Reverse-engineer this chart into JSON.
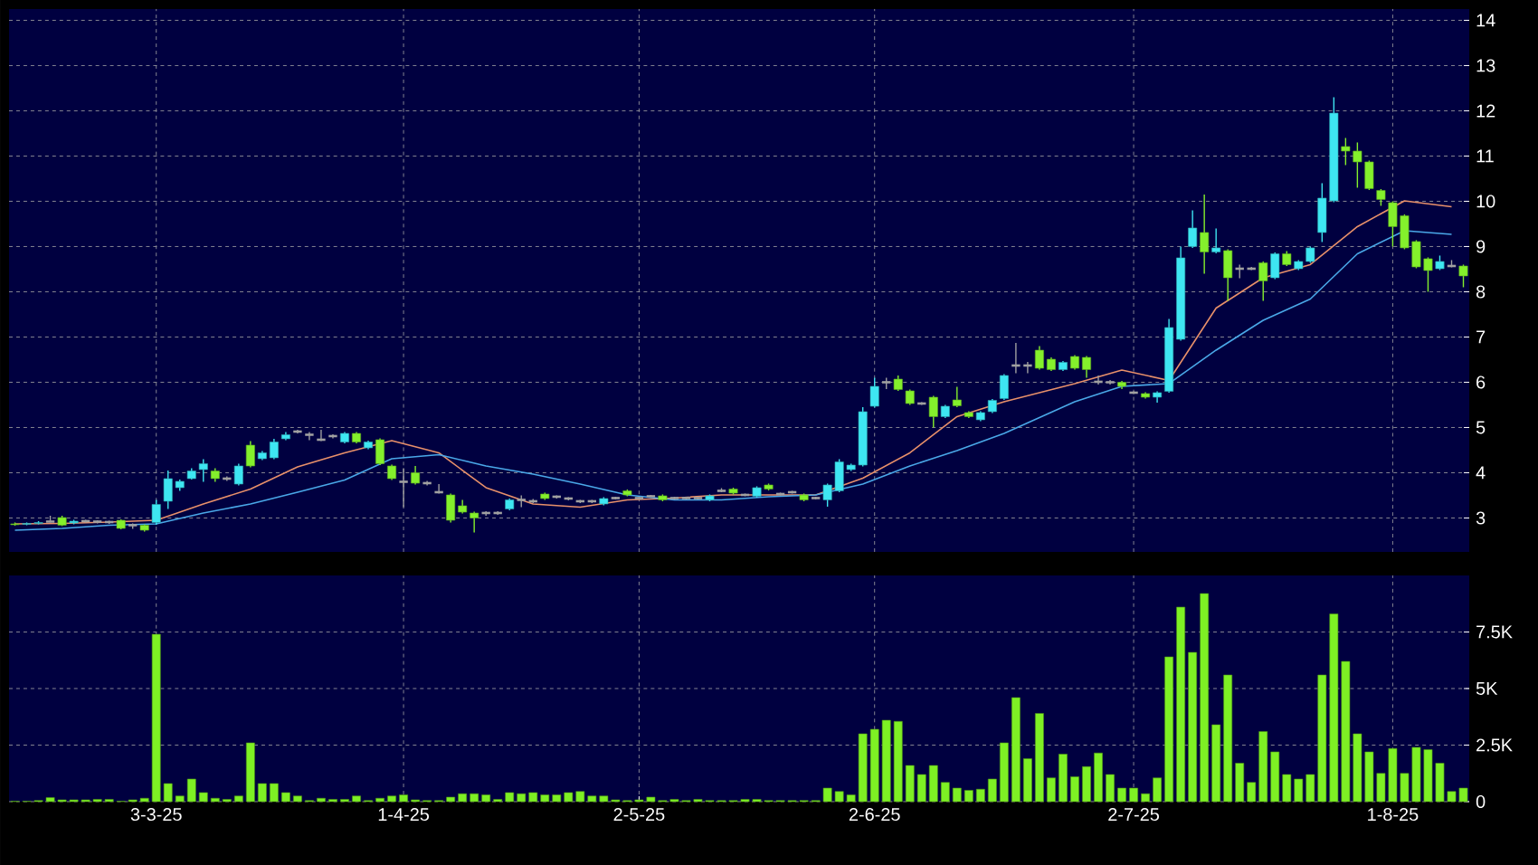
{
  "chart_data": [
    {
      "type": "candlestick",
      "categories": [
        null,
        null,
        null,
        null,
        null,
        null,
        null,
        null,
        null,
        null,
        null,
        null,
        null,
        null,
        null,
        null,
        null,
        null,
        null,
        null,
        null,
        null,
        null,
        null,
        null,
        null,
        null,
        null,
        null,
        null,
        null,
        null,
        null,
        null,
        null,
        null,
        null,
        null,
        null,
        null,
        null,
        null,
        null,
        null,
        null,
        null,
        null,
        null,
        null,
        null,
        null,
        null,
        null,
        null,
        null,
        null,
        null,
        null,
        null,
        null,
        null,
        null,
        null,
        null,
        null,
        null,
        null,
        null,
        null,
        null,
        null,
        null,
        null,
        null,
        null,
        null,
        null,
        null,
        null,
        null,
        null,
        null,
        null,
        null,
        null,
        null,
        null,
        null,
        null,
        null,
        null,
        null,
        null,
        null,
        null,
        null,
        null,
        null,
        null,
        null,
        null,
        null,
        null,
        null,
        null,
        null,
        null,
        null,
        null,
        null,
        null,
        null,
        null,
        null,
        null,
        null,
        null,
        null,
        null,
        null,
        null,
        null,
        null,
        null
      ],
      "ohlc": [
        [
          2.87,
          2.9,
          2.83,
          2.85
        ],
        [
          2.86,
          2.9,
          2.84,
          2.88
        ],
        [
          2.88,
          2.93,
          2.86,
          2.9
        ],
        [
          2.92,
          3.05,
          2.9,
          2.92
        ],
        [
          3.01,
          3.05,
          2.82,
          2.84
        ],
        [
          2.89,
          2.96,
          2.86,
          2.93
        ],
        [
          2.93,
          2.96,
          2.9,
          2.93
        ],
        [
          2.92,
          2.95,
          2.88,
          2.92
        ],
        [
          2.91,
          2.94,
          2.87,
          2.91
        ],
        [
          2.95,
          2.97,
          2.75,
          2.77
        ],
        [
          2.84,
          2.88,
          2.76,
          2.84
        ],
        [
          2.84,
          2.86,
          2.7,
          2.73
        ],
        [
          2.9,
          3.4,
          2.85,
          3.3
        ],
        [
          3.37,
          4.05,
          3.2,
          3.87
        ],
        [
          3.67,
          3.85,
          3.6,
          3.81
        ],
        [
          3.87,
          4.1,
          3.85,
          4.04
        ],
        [
          4.07,
          4.3,
          3.8,
          4.2
        ],
        [
          4.04,
          4.1,
          3.8,
          3.87
        ],
        [
          3.87,
          3.92,
          3.82,
          3.87
        ],
        [
          3.75,
          4.2,
          3.72,
          4.15
        ],
        [
          4.61,
          4.7,
          4.12,
          4.15
        ],
        [
          4.31,
          4.48,
          4.28,
          4.44
        ],
        [
          4.33,
          4.75,
          4.3,
          4.68
        ],
        [
          4.75,
          4.9,
          4.72,
          4.84
        ],
        [
          4.91,
          4.95,
          4.87,
          4.91
        ],
        [
          4.84,
          4.9,
          4.72,
          4.84
        ],
        [
          4.73,
          4.95,
          4.7,
          4.73
        ],
        [
          4.81,
          4.85,
          4.76,
          4.81
        ],
        [
          4.68,
          4.9,
          4.65,
          4.87
        ],
        [
          4.87,
          4.9,
          4.65,
          4.68
        ],
        [
          4.55,
          4.71,
          4.52,
          4.68
        ],
        [
          4.73,
          4.76,
          4.17,
          4.2
        ],
        [
          4.15,
          4.18,
          3.84,
          3.87
        ],
        [
          3.8,
          4.1,
          3.24,
          3.8
        ],
        [
          4.0,
          4.15,
          3.74,
          3.77
        ],
        [
          3.77,
          3.82,
          3.72,
          3.77
        ],
        [
          3.57,
          3.75,
          3.54,
          3.57
        ],
        [
          3.51,
          3.54,
          2.9,
          2.95
        ],
        [
          3.27,
          3.4,
          3.1,
          3.13
        ],
        [
          3.11,
          3.14,
          2.68,
          3.0
        ],
        [
          3.11,
          3.15,
          3.05,
          3.11
        ],
        [
          3.11,
          3.15,
          3.07,
          3.11
        ],
        [
          3.2,
          3.43,
          3.17,
          3.4
        ],
        [
          3.4,
          3.5,
          3.24,
          3.4
        ],
        [
          3.37,
          3.42,
          3.33,
          3.37
        ],
        [
          3.53,
          3.56,
          3.4,
          3.43
        ],
        [
          3.47,
          3.5,
          3.43,
          3.47
        ],
        [
          3.43,
          3.46,
          3.39,
          3.43
        ],
        [
          3.37,
          3.4,
          3.33,
          3.37
        ],
        [
          3.37,
          3.4,
          3.33,
          3.37
        ],
        [
          3.31,
          3.46,
          3.28,
          3.43
        ],
        [
          3.44,
          3.47,
          3.41,
          3.44
        ],
        [
          3.6,
          3.63,
          3.48,
          3.51
        ],
        [
          3.44,
          3.47,
          3.41,
          3.44
        ],
        [
          3.48,
          3.51,
          3.45,
          3.48
        ],
        [
          3.49,
          3.52,
          3.37,
          3.4
        ],
        [
          3.44,
          3.47,
          3.41,
          3.44
        ],
        [
          3.44,
          3.47,
          3.41,
          3.44
        ],
        [
          3.44,
          3.47,
          3.41,
          3.44
        ],
        [
          3.4,
          3.52,
          3.37,
          3.49
        ],
        [
          3.6,
          3.66,
          3.57,
          3.6
        ],
        [
          3.64,
          3.67,
          3.52,
          3.55
        ],
        [
          3.51,
          3.54,
          3.48,
          3.51
        ],
        [
          3.48,
          3.7,
          3.45,
          3.67
        ],
        [
          3.73,
          3.76,
          3.61,
          3.64
        ],
        [
          3.53,
          3.56,
          3.5,
          3.53
        ],
        [
          3.57,
          3.6,
          3.54,
          3.57
        ],
        [
          3.51,
          3.54,
          3.37,
          3.4
        ],
        [
          3.44,
          3.47,
          3.41,
          3.44
        ],
        [
          3.4,
          3.76,
          3.25,
          3.73
        ],
        [
          3.6,
          4.3,
          3.57,
          4.24
        ],
        [
          4.07,
          4.2,
          4.04,
          4.17
        ],
        [
          4.17,
          5.45,
          4.14,
          5.35
        ],
        [
          5.47,
          6.1,
          5.44,
          5.91
        ],
        [
          6.0,
          6.1,
          5.85,
          6.0
        ],
        [
          6.07,
          6.15,
          5.81,
          5.84
        ],
        [
          5.81,
          5.84,
          5.5,
          5.53
        ],
        [
          5.53,
          5.56,
          5.5,
          5.53
        ],
        [
          5.67,
          5.7,
          5.0,
          5.24
        ],
        [
          5.24,
          5.5,
          5.21,
          5.47
        ],
        [
          5.61,
          5.9,
          5.45,
          5.48
        ],
        [
          5.33,
          5.36,
          5.21,
          5.24
        ],
        [
          5.17,
          5.36,
          5.14,
          5.33
        ],
        [
          5.35,
          5.63,
          5.32,
          5.6
        ],
        [
          5.64,
          6.18,
          5.61,
          6.15
        ],
        [
          6.37,
          6.87,
          6.2,
          6.37
        ],
        [
          6.37,
          6.45,
          6.2,
          6.37
        ],
        [
          6.71,
          6.8,
          6.28,
          6.31
        ],
        [
          6.51,
          6.55,
          6.25,
          6.28
        ],
        [
          6.28,
          6.47,
          6.25,
          6.44
        ],
        [
          6.57,
          6.6,
          6.28,
          6.31
        ],
        [
          6.55,
          6.58,
          6.1,
          6.28
        ],
        [
          6.01,
          6.15,
          5.95,
          6.01
        ],
        [
          6.0,
          6.05,
          5.95,
          6.0
        ],
        [
          6.0,
          6.03,
          5.85,
          5.91
        ],
        [
          5.77,
          5.8,
          5.74,
          5.77
        ],
        [
          5.75,
          5.78,
          5.64,
          5.67
        ],
        [
          5.67,
          5.8,
          5.55,
          5.77
        ],
        [
          5.8,
          7.4,
          5.77,
          7.21
        ],
        [
          6.95,
          9.0,
          6.92,
          8.75
        ],
        [
          9.0,
          9.8,
          8.97,
          9.41
        ],
        [
          9.31,
          10.15,
          8.4,
          8.88
        ],
        [
          8.88,
          9.4,
          8.85,
          8.97
        ],
        [
          8.91,
          8.94,
          7.8,
          8.31
        ],
        [
          8.51,
          8.6,
          8.3,
          8.51
        ],
        [
          8.51,
          8.55,
          8.48,
          8.51
        ],
        [
          8.64,
          8.67,
          7.8,
          8.24
        ],
        [
          8.31,
          8.87,
          8.28,
          8.84
        ],
        [
          8.84,
          8.9,
          8.57,
          8.6
        ],
        [
          8.51,
          8.7,
          8.48,
          8.67
        ],
        [
          8.67,
          9.0,
          8.64,
          8.97
        ],
        [
          9.31,
          10.4,
          9.1,
          10.07
        ],
        [
          10.01,
          12.3,
          9.98,
          11.95
        ],
        [
          11.21,
          11.4,
          10.8,
          11.11
        ],
        [
          11.11,
          11.3,
          10.3,
          10.87
        ],
        [
          10.87,
          10.9,
          10.25,
          10.28
        ],
        [
          10.24,
          10.27,
          9.9,
          10.04
        ],
        [
          9.97,
          10.0,
          9.0,
          9.44
        ],
        [
          9.68,
          9.71,
          8.94,
          8.97
        ],
        [
          9.11,
          9.14,
          8.52,
          8.55
        ],
        [
          8.73,
          8.76,
          8.0,
          8.47
        ],
        [
          8.51,
          8.8,
          8.48,
          8.67
        ],
        [
          8.57,
          8.7,
          8.54,
          8.57
        ],
        [
          8.57,
          8.6,
          8.1,
          8.35
        ]
      ],
      "colors": [
        "#84f02c",
        "#3ee6f2",
        "#3ee6f2",
        "#a0a0a0",
        "#84f02c",
        "#3ee6f2",
        "#a0a0a0",
        "#a0a0a0",
        "#a0a0a0",
        "#84f02c",
        "#a0a0a0",
        "#84f02c",
        "#3ee6f2",
        "#3ee6f2",
        "#3ee6f2",
        "#3ee6f2",
        "#3ee6f2",
        "#84f02c",
        "#a0a0a0",
        "#3ee6f2",
        "#84f02c",
        "#3ee6f2",
        "#3ee6f2",
        "#3ee6f2",
        "#a0a0a0",
        "#a0a0a0",
        "#a0a0a0",
        "#a0a0a0",
        "#3ee6f2",
        "#84f02c",
        "#3ee6f2",
        "#84f02c",
        "#84f02c",
        "#a0a0a0",
        "#84f02c",
        "#a0a0a0",
        "#a0a0a0",
        "#84f02c",
        "#84f02c",
        "#84f02c",
        "#a0a0a0",
        "#a0a0a0",
        "#3ee6f2",
        "#a0a0a0",
        "#a0a0a0",
        "#84f02c",
        "#a0a0a0",
        "#a0a0a0",
        "#a0a0a0",
        "#a0a0a0",
        "#3ee6f2",
        "#a0a0a0",
        "#84f02c",
        "#a0a0a0",
        "#a0a0a0",
        "#84f02c",
        "#a0a0a0",
        "#a0a0a0",
        "#a0a0a0",
        "#3ee6f2",
        "#a0a0a0",
        "#84f02c",
        "#a0a0a0",
        "#3ee6f2",
        "#84f02c",
        "#a0a0a0",
        "#a0a0a0",
        "#84f02c",
        "#a0a0a0",
        "#3ee6f2",
        "#3ee6f2",
        "#3ee6f2",
        "#3ee6f2",
        "#3ee6f2",
        "#a0a0a0",
        "#84f02c",
        "#84f02c",
        "#a0a0a0",
        "#84f02c",
        "#3ee6f2",
        "#84f02c",
        "#84f02c",
        "#3ee6f2",
        "#3ee6f2",
        "#3ee6f2",
        "#a0a0a0",
        "#a0a0a0",
        "#84f02c",
        "#84f02c",
        "#3ee6f2",
        "#84f02c",
        "#84f02c",
        "#a0a0a0",
        "#a0a0a0",
        "#84f02c",
        "#a0a0a0",
        "#84f02c",
        "#3ee6f2",
        "#3ee6f2",
        "#3ee6f2",
        "#3ee6f2",
        "#84f02c",
        "#3ee6f2",
        "#84f02c",
        "#a0a0a0",
        "#a0a0a0",
        "#84f02c",
        "#3ee6f2",
        "#84f02c",
        "#3ee6f2",
        "#3ee6f2",
        "#3ee6f2",
        "#3ee6f2",
        "#84f02c",
        "#84f02c",
        "#84f02c",
        "#84f02c",
        "#84f02c",
        "#84f02c",
        "#84f02c",
        "#84f02c",
        "#3ee6f2",
        "#a0a0a0",
        "#84f02c"
      ],
      "series": [
        {
          "type": "line",
          "color": "#e8906a",
          "values": [
            2.87,
            null,
            null,
            null,
            2.88,
            null,
            null,
            null,
            2.91,
            null,
            null,
            null,
            2.95,
            null,
            null,
            null,
            3.31,
            null,
            null,
            null,
            3.64,
            null,
            null,
            null,
            4.13,
            null,
            null,
            null,
            4.44,
            null,
            null,
            null,
            4.71,
            null,
            null,
            null,
            4.44,
            null,
            null,
            null,
            3.67,
            null,
            null,
            null,
            3.31,
            null,
            null,
            null,
            3.24,
            null,
            null,
            null,
            3.4,
            null,
            null,
            null,
            3.44,
            null,
            null,
            null,
            3.51,
            null,
            null,
            null,
            3.51,
            null,
            null,
            null,
            3.51,
            null,
            null,
            null,
            3.88,
            null,
            null,
            null,
            4.44,
            null,
            null,
            null,
            5.24,
            null,
            null,
            null,
            5.57,
            null,
            null,
            null,
            null,
            null,
            5.97,
            null,
            null,
            null,
            6.27,
            null,
            null,
            null,
            6.04,
            null,
            null,
            null,
            7.64,
            null,
            null,
            null,
            8.31,
            null,
            null,
            null,
            8.6,
            null,
            null,
            null,
            9.44,
            null,
            null,
            null,
            10.01,
            null,
            null,
            null,
            9.88,
            null
          ]
        },
        {
          "type": "line",
          "color": "#4aa8e8",
          "values": [
            2.73,
            null,
            null,
            null,
            2.77,
            null,
            null,
            null,
            2.84,
            null,
            null,
            null,
            2.87,
            null,
            null,
            null,
            3.11,
            null,
            null,
            null,
            3.31,
            null,
            null,
            null,
            3.57,
            null,
            null,
            null,
            3.84,
            null,
            null,
            null,
            4.31,
            null,
            null,
            null,
            4.4,
            null,
            null,
            null,
            4.15,
            null,
            null,
            null,
            3.97,
            null,
            null,
            null,
            3.75,
            null,
            null,
            null,
            3.51,
            null,
            null,
            null,
            3.4,
            null,
            null,
            null,
            3.4,
            null,
            null,
            null,
            3.47,
            null,
            null,
            null,
            3.51,
            null,
            null,
            null,
            3.75,
            null,
            null,
            null,
            4.15,
            null,
            null,
            null,
            4.49,
            null,
            null,
            null,
            4.87,
            null,
            null,
            null,
            null,
            null,
            5.57,
            null,
            null,
            null,
            5.91,
            null,
            null,
            null,
            5.97,
            null,
            null,
            null,
            6.71,
            null,
            null,
            null,
            7.37,
            null,
            null,
            null,
            7.84,
            null,
            null,
            null,
            8.84,
            null,
            null,
            null,
            9.35,
            null,
            null,
            null,
            9.27,
            null
          ]
        }
      ],
      "ylim": [
        2.25,
        14.25
      ],
      "yticks": [
        3,
        4,
        5,
        6,
        7,
        8,
        9,
        10,
        11,
        12,
        13,
        14
      ],
      "grid": true,
      "tick_labels": "y"
    },
    {
      "type": "bar",
      "categories": [
        null,
        null,
        null,
        null,
        null,
        null,
        null,
        null,
        null,
        null,
        null,
        null,
        "3-3-25",
        null,
        null,
        null,
        null,
        null,
        null,
        null,
        null,
        null,
        null,
        null,
        null,
        null,
        null,
        null,
        null,
        null,
        null,
        null,
        null,
        "1-4-25",
        null,
        null,
        null,
        null,
        null,
        null,
        null,
        null,
        null,
        null,
        null,
        null,
        null,
        null,
        null,
        null,
        null,
        null,
        null,
        "2-5-25",
        null,
        null,
        null,
        null,
        null,
        null,
        null,
        null,
        null,
        null,
        null,
        null,
        null,
        null,
        null,
        null,
        null,
        null,
        null,
        "2-6-25",
        null,
        null,
        null,
        null,
        null,
        null,
        null,
        null,
        null,
        null,
        null,
        null,
        null,
        null,
        null,
        null,
        null,
        null,
        null,
        null,
        null,
        "2-7-25",
        null,
        null,
        null,
        null,
        null,
        null,
        null,
        null,
        null,
        null,
        null,
        null,
        null,
        null,
        null,
        null,
        null,
        null,
        null,
        null,
        null,
        "1-8-25",
        null,
        null,
        null,
        null,
        null,
        null
      ],
      "values": [
        20,
        20,
        50,
        180,
        80,
        80,
        80,
        100,
        100,
        20,
        80,
        150,
        7400,
        800,
        250,
        1000,
        400,
        150,
        100,
        250,
        2600,
        800,
        800,
        400,
        250,
        50,
        150,
        100,
        100,
        250,
        50,
        150,
        250,
        300,
        80,
        50,
        50,
        200,
        350,
        350,
        300,
        100,
        400,
        350,
        400,
        300,
        300,
        400,
        450,
        250,
        250,
        80,
        50,
        80,
        200,
        50,
        100,
        50,
        100,
        50,
        50,
        50,
        100,
        100,
        50,
        50,
        50,
        50,
        50,
        600,
        450,
        300,
        3000,
        3200,
        3600,
        3550,
        1600,
        1200,
        1600,
        850,
        600,
        500,
        550,
        1000,
        2600,
        4600,
        1900,
        3900,
        1050,
        2100,
        1100,
        1550,
        2150,
        1200,
        600,
        600,
        350,
        1050,
        6400,
        8600,
        6600,
        9200,
        3400,
        5600,
        1700,
        850,
        3100,
        2200,
        1200,
        1000,
        1200,
        5600,
        8300,
        6200,
        3000,
        2200,
        1250,
        2350,
        1250,
        2400,
        2300,
        1700,
        450,
        600
      ],
      "color": "#7ef024",
      "ylim": [
        0,
        10000
      ],
      "yticks": [
        0,
        {
          "value": 2500,
          "label": "2.5K"
        },
        {
          "value": 5000,
          "label": "5K"
        },
        {
          "value": 7500,
          "label": "7.5K"
        }
      ],
      "grid": true
    }
  ]
}
